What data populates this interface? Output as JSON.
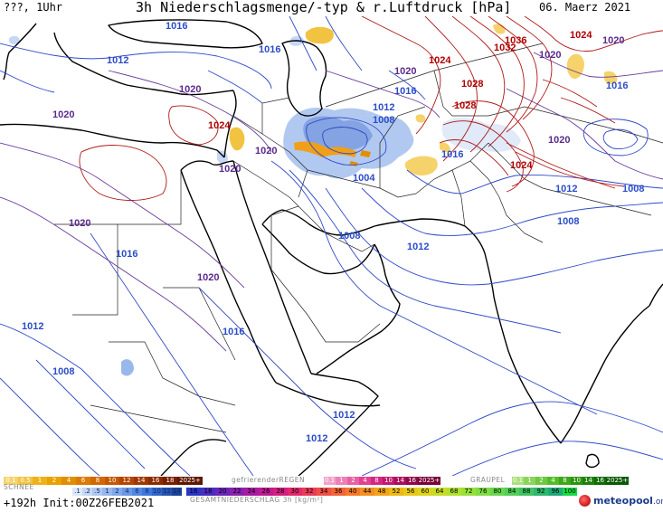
{
  "header": {
    "left": "???, 1Uhr",
    "title": "3h Niederschlagsmenge/-typ & r.Luftdruck [hPa]",
    "date": "06. Maerz 2021"
  },
  "map": {
    "isobar_labels": [
      {
        "text": "1012",
        "color": "#2b4cc8"
      },
      {
        "text": "1016",
        "color": "#2b4cc8"
      },
      {
        "text": "1016",
        "color": "#2b4cc8"
      },
      {
        "text": "1020",
        "color": "#5a2a8c"
      },
      {
        "text": "1020",
        "color": "#5a2a8c"
      },
      {
        "text": "1024",
        "color": "#b00000"
      },
      {
        "text": "1020",
        "color": "#5a2a8c"
      },
      {
        "text": "1020",
        "color": "#5a2a8c"
      },
      {
        "text": "1020",
        "color": "#5a2a8c"
      },
      {
        "text": "1016",
        "color": "#2b4cc8"
      },
      {
        "text": "1020",
        "color": "#5a2a8c"
      },
      {
        "text": "1012",
        "color": "#2b4cc8"
      },
      {
        "text": "1008",
        "color": "#2b4cc8"
      },
      {
        "text": "1004",
        "color": "#2b4cc8"
      },
      {
        "text": "1016",
        "color": "#2b4cc8"
      },
      {
        "text": "1008",
        "color": "#2b4cc8"
      },
      {
        "text": "1012",
        "color": "#2b4cc8"
      },
      {
        "text": "1016",
        "color": "#2b4cc8"
      },
      {
        "text": "1020",
        "color": "#5a2a8c"
      },
      {
        "text": "1012",
        "color": "#2b4cc8"
      },
      {
        "text": "1008",
        "color": "#2b4cc8"
      },
      {
        "text": "1016",
        "color": "#2b4cc8"
      },
      {
        "text": "1012",
        "color": "#2b4cc8"
      },
      {
        "text": "1012",
        "color": "#2b4cc8"
      },
      {
        "text": "1024",
        "color": "#b00000"
      },
      {
        "text": "1028",
        "color": "#b00000"
      },
      {
        "text": "1028",
        "color": "#b00000"
      },
      {
        "text": "1032",
        "color": "#b00000"
      },
      {
        "text": "1036",
        "color": "#b00000"
      },
      {
        "text": "1024",
        "color": "#b00000"
      },
      {
        "text": "1020",
        "color": "#5a2a8c"
      },
      {
        "text": "1020",
        "color": "#5a2a8c"
      },
      {
        "text": "1016",
        "color": "#2b4cc8"
      },
      {
        "text": "1020",
        "color": "#5a2a8c"
      },
      {
        "text": "1024",
        "color": "#b00000"
      },
      {
        "text": "1012",
        "color": "#2b4cc8"
      },
      {
        "text": "1008",
        "color": "#2b4cc8"
      },
      {
        "text": "1008",
        "color": "#2b4cc8"
      }
    ]
  },
  "legend": {
    "rain_label": "",
    "rain_values": [
      "0.1",
      "0.5",
      "1",
      "2",
      "4",
      "6",
      "8",
      "10",
      "12",
      "14",
      "16",
      "18",
      "2025+"
    ],
    "rain_colors": [
      "#f5d36a",
      "#f2c341",
      "#efb118",
      "#e9a200",
      "#e28e00",
      "#dc7b00",
      "#d26800",
      "#c55700",
      "#b44500",
      "#a03700",
      "#8c2b00",
      "#781f00",
      "#5e1800"
    ],
    "freezing_label": "gefrierenderREGEN",
    "freezing_values": [
      "0.1",
      "1",
      "2",
      "4",
      "8",
      "10",
      "14",
      "16",
      "2025+"
    ],
    "freezing_colors": [
      "#f4a0c8",
      "#ee80b6",
      "#e860a4",
      "#e24092",
      "#d42880",
      "#c0186e",
      "#aa0c5c",
      "#92064a",
      "#780238"
    ],
    "graupel_label": "GRAUPEL",
    "graupel_values": [
      "0.1",
      "1",
      "2",
      "4",
      "8",
      "10",
      "14",
      "16",
      "2025+"
    ],
    "graupel_colors": [
      "#a8e07a",
      "#8cd45c",
      "#70c840",
      "#54bc28",
      "#3ca818",
      "#2c9410",
      "#1e800a",
      "#126c06",
      "#0a5803"
    ],
    "snow_label": "SCHNEE",
    "snow_values": [
      ".1",
      ".2",
      ".5",
      "1",
      "2",
      "4",
      "6",
      "8",
      "10",
      "12",
      "14"
    ],
    "snow_colors": [
      "#dde8f8",
      "#c6d8f4",
      "#afc8f0",
      "#98b8ec",
      "#81a8e8",
      "#6a98e4",
      "#5388e0",
      "#3c78dc",
      "#2f66c8",
      "#2454b0",
      "#1a4298"
    ],
    "total_values": [
      "16",
      "18",
      "20",
      "22",
      "24",
      "26",
      "28",
      "30",
      "32",
      "34",
      "36",
      "40",
      "44",
      "48",
      "52",
      "56",
      "60",
      "64",
      "68",
      "72",
      "76",
      "80",
      "84",
      "88",
      "92",
      "96",
      "100"
    ],
    "total_colors": [
      "#2a36c4",
      "#4a2cc0",
      "#6a26b8",
      "#8a20ae",
      "#a81aa2",
      "#c01a92",
      "#d41e80",
      "#e2286c",
      "#ea3a58",
      "#f04e46",
      "#f26436",
      "#f47a2a",
      "#f49020",
      "#f2a418",
      "#eeb816",
      "#e8c818",
      "#dcd41e",
      "#c8dc26",
      "#b0e030",
      "#98e03a",
      "#80dc44",
      "#68d64e",
      "#52ce58",
      "#3ec462",
      "#2cb86c",
      "#1eaa76",
      "#14dc40"
    ],
    "total_label": "GESAMTNIEDERSCHLAG 3h [kg/m²]",
    "run_info": "+192h Init:00Z26FEB2021",
    "brand": "meteopool",
    "brand_org": ".org"
  }
}
